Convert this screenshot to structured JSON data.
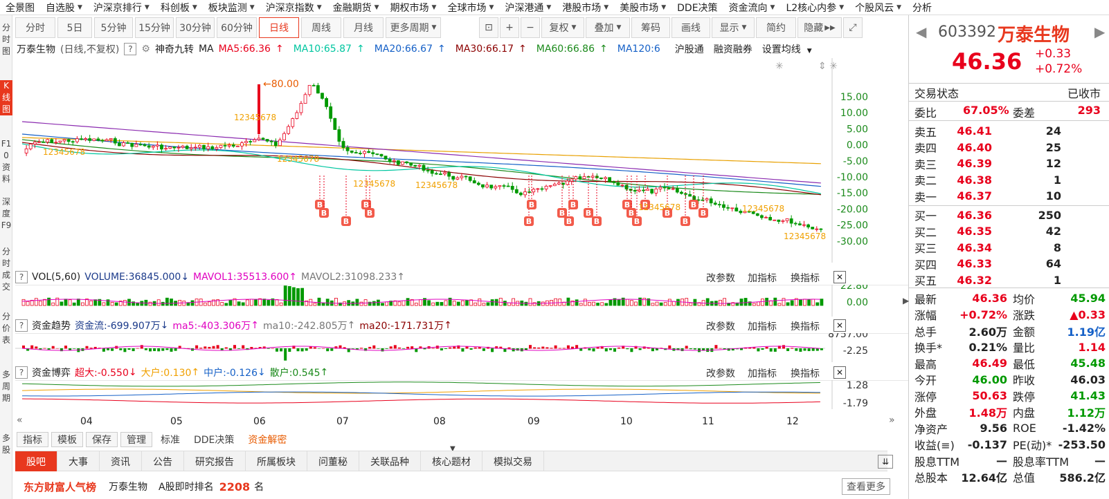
{
  "top_menu": [
    "全景图",
    "自选股",
    "沪深京排行",
    "科创板",
    "板块监测",
    "沪深京指数",
    "金融期货",
    "期权市场",
    "全球市场",
    "沪深港通",
    "港股市场",
    "美股市场",
    "DDE决策",
    "资金流向",
    "L2核心内参",
    "个股风云",
    "分析"
  ],
  "left_strip": [
    {
      "label": "分时图",
      "active": false
    },
    {
      "label": "K线图",
      "active": true
    },
    {
      "label": "F10资料",
      "active": false
    },
    {
      "label": "深度F9",
      "active": false
    },
    {
      "label": "分时成交",
      "active": false
    },
    {
      "label": "分价表",
      "active": false
    },
    {
      "label": "多周期",
      "active": false
    },
    {
      "label": "多股",
      "active": false
    }
  ],
  "toolbar": {
    "periods": [
      "分时",
      "5日",
      "5分钟",
      "15分钟",
      "30分钟",
      "60分钟",
      "日线",
      "周线",
      "月线",
      "更多周期"
    ],
    "active_period": "日线",
    "tools": [
      "复权",
      "叠加",
      "筹码",
      "画线",
      "显示",
      "简约",
      "隐藏"
    ]
  },
  "main_chart": {
    "stock_label": "万泰生物",
    "period_note": "(日线,不复权)",
    "indicator": "神奇九转",
    "ma_label": "MA",
    "ma_values": [
      {
        "label": "MA5:66.36",
        "color": "#e8001c",
        "arrow": "↑"
      },
      {
        "label": "MA10:65.87",
        "color": "#00c6a0",
        "arrow": "↑"
      },
      {
        "label": "MA20:66.67",
        "color": "#1560c7",
        "arrow": "↑"
      },
      {
        "label": "MA30:66.17",
        "color": "#8b0000",
        "arrow": "↑"
      },
      {
        "label": "MA60:66.86",
        "color": "#1b8a1b",
        "arrow": "↑"
      },
      {
        "label": "MA120:6",
        "color": "#1560c7",
        "arrow": ""
      }
    ],
    "links": [
      "沪股通",
      "融资融券",
      "设置均线"
    ],
    "peak_label": "80.00",
    "y_ticks": [
      "15.00",
      "10.00",
      "5.00",
      "0.00",
      "-5.00",
      "-10.00",
      "-15.00",
      "-20.00",
      "-25.00",
      "-30.00"
    ],
    "x_ticks": [
      "04",
      "05",
      "06",
      "07",
      "08",
      "09",
      "10",
      "11",
      "12"
    ]
  },
  "volume_panel": {
    "title": "VOL(5,60)",
    "volume": "VOLUME:36845.000",
    "mavol1": "MAVOL1:35513.600",
    "mavol2": "MAVOL2:31098.233",
    "y_ticks": [
      "22.80",
      "0.00"
    ]
  },
  "trend_panel": {
    "title": "资金趋势",
    "flow": "资金流:-699.907万",
    "ma5": "ma5:-403.306万",
    "ma10": "ma10:-242.805万",
    "ma20": "ma20:-171.731万",
    "y_ticks": [
      "8757.00",
      "-2.25"
    ]
  },
  "game_panel": {
    "title": "资金博弈",
    "super": "超大:-0.550",
    "big": "大户:0.130",
    "mid": "中户:-0.126",
    "small": "散户:0.545",
    "y_ticks": [
      "1.28",
      "-1.79"
    ]
  },
  "panel_buttons": [
    "改参数",
    "加指标",
    "换指标"
  ],
  "indicator_selector": [
    "指标",
    "模板",
    "保存",
    "管理",
    "标准",
    "DDE决策",
    "资金解密"
  ],
  "bottom_tabs": [
    "股吧",
    "大事",
    "资讯",
    "公告",
    "研究报告",
    "所属板块",
    "问董秘",
    "关联品种",
    "核心题材",
    "模拟交易"
  ],
  "bottom_bar": {
    "brand": "东方财富人气榜",
    "stock": "万泰生物",
    "rank_label": "A股即时排名",
    "rank": "2208",
    "rank_unit": "名",
    "more": "查看更多"
  },
  "quote": {
    "code": "603392",
    "name": "万泰生物",
    "price": "46.36",
    "change": "+0.33",
    "change_pct": "+0.72%",
    "status_label": "交易状态",
    "status": "已收市",
    "weibi_label": "委比",
    "weibi": "67.05%",
    "weicha_label": "委差",
    "weicha": "293",
    "asks": [
      {
        "label": "卖五",
        "price": "46.41",
        "vol": "24"
      },
      {
        "label": "卖四",
        "price": "46.40",
        "vol": "25"
      },
      {
        "label": "卖三",
        "price": "46.39",
        "vol": "12"
      },
      {
        "label": "卖二",
        "price": "46.38",
        "vol": "1"
      },
      {
        "label": "卖一",
        "price": "46.37",
        "vol": "10"
      }
    ],
    "bids": [
      {
        "label": "买一",
        "price": "46.36",
        "vol": "250"
      },
      {
        "label": "买二",
        "price": "46.35",
        "vol": "42"
      },
      {
        "label": "买三",
        "price": "46.34",
        "vol": "8"
      },
      {
        "label": "买四",
        "price": "46.33",
        "vol": "64"
      },
      {
        "label": "买五",
        "price": "46.32",
        "vol": "1"
      }
    ],
    "stats": [
      {
        "l1": "最新",
        "v1": "46.36",
        "c1": "red",
        "l2": "均价",
        "v2": "45.94",
        "c2": "green"
      },
      {
        "l1": "涨幅",
        "v1": "+0.72%",
        "c1": "red",
        "l2": "涨跌",
        "v2": "▲0.33",
        "c2": "red"
      },
      {
        "l1": "总手",
        "v1": "2.60万",
        "c1": "",
        "l2": "金额",
        "v2": "1.19亿",
        "c2": "blue"
      },
      {
        "l1": "换手*",
        "v1": "0.21%",
        "c1": "",
        "l2": "量比",
        "v2": "1.14",
        "c2": "red"
      },
      {
        "l1": "最高",
        "v1": "46.49",
        "c1": "red",
        "l2": "最低",
        "v2": "45.48",
        "c2": "green"
      },
      {
        "l1": "今开",
        "v1": "46.00",
        "c1": "green",
        "l2": "昨收",
        "v2": "46.03",
        "c2": ""
      },
      {
        "l1": "涨停",
        "v1": "50.63",
        "c1": "red",
        "l2": "跌停",
        "v2": "41.43",
        "c2": "green"
      },
      {
        "l1": "外盘",
        "v1": "1.48万",
        "c1": "red",
        "l2": "内盘",
        "v2": "1.12万",
        "c2": "green"
      },
      {
        "l1": "净资产",
        "v1": "9.56",
        "c1": "",
        "l2": "ROE",
        "v2": "-1.42%",
        "c2": ""
      },
      {
        "l1": "收益(≡)",
        "v1": "-0.137",
        "c1": "",
        "l2": "PE(动)*",
        "v2": "-253.50",
        "c2": ""
      },
      {
        "l1": "股息TTM",
        "v1": "—",
        "c1": "",
        "l2": "股息率TTM",
        "v2": "—",
        "c2": ""
      },
      {
        "l1": "总股本",
        "v1": "12.64亿",
        "c1": "",
        "l2": "总值",
        "v2": "586.2亿",
        "c2": ""
      }
    ]
  },
  "colors": {
    "up": "#e8001c",
    "down": "#009900",
    "accent": "#e8381e"
  }
}
